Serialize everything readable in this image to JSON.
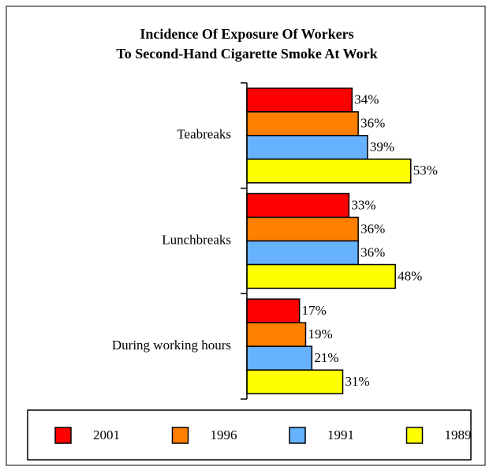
{
  "chart_data": {
    "type": "hbar",
    "title": [
      "Incidence Of Exposure Of Workers",
      "To Second-Hand Cigarette Smoke At Work"
    ],
    "categories": [
      "Teabreaks",
      "Lunchbreaks",
      "During working hours"
    ],
    "series": [
      {
        "name": "2001",
        "color": "#ff0000",
        "values": [
          34,
          33,
          17
        ],
        "value_labels": [
          "34%",
          "33%",
          "17%"
        ]
      },
      {
        "name": "1996",
        "color": "#ff8000",
        "values": [
          36,
          36,
          19
        ],
        "value_labels": [
          "36%",
          "36%",
          "19%"
        ]
      },
      {
        "name": "1991",
        "color": "#66b2ff",
        "values": [
          39,
          36,
          21
        ],
        "value_labels": [
          "39%",
          "36%",
          "21%"
        ]
      },
      {
        "name": "1989",
        "color": "#ffff00",
        "values": [
          53,
          48,
          31
        ],
        "value_labels": [
          "53%",
          "48%",
          "31%"
        ]
      }
    ]
  }
}
